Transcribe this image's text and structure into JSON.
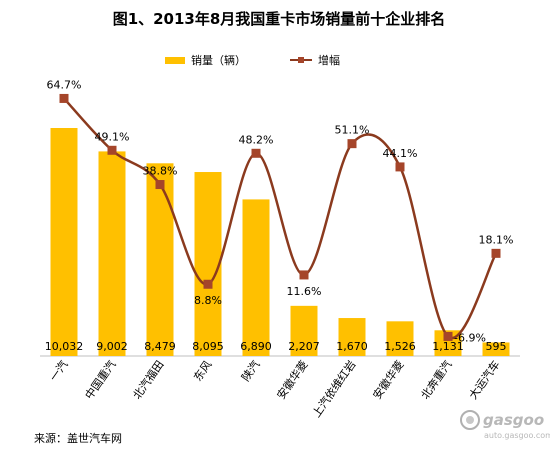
{
  "title": "图1、2013年8月我国重卡市场销量前十企业排名",
  "legend": {
    "bar_label": "销量（辆）",
    "line_label": "增幅"
  },
  "source": "来源：盖世汽车网",
  "watermark": {
    "brand": "gasgoo",
    "site": "auto.gasgoo.com"
  },
  "colors": {
    "bar": "#ffc000",
    "line": "#8b3a1e",
    "marker": "#a5452a",
    "label": "#000000",
    "axis": "#bfbfbf"
  },
  "chart_data": {
    "type": "bar",
    "categories": [
      "一汽",
      "中国重汽",
      "北汽福田",
      "东风",
      "陕汽",
      "安徽华菱",
      "上汽依维红岩",
      "安徽华菱",
      "北奔重汽",
      "大运汽车"
    ],
    "series": [
      {
        "name": "销量（辆）",
        "type": "bar",
        "values": [
          10032,
          9002,
          8479,
          8095,
          6890,
          2207,
          1670,
          1526,
          1131,
          595
        ],
        "labels": [
          "10,032",
          "9,002",
          "8,479",
          "8,095",
          "6,890",
          "2,207",
          "1,670",
          "1,526",
          "1,131",
          "595"
        ]
      },
      {
        "name": "增幅",
        "type": "line",
        "values": [
          64.7,
          49.1,
          38.8,
          8.8,
          48.2,
          11.6,
          51.1,
          44.1,
          -6.9,
          18.1
        ],
        "labels": [
          "64.7%",
          "49.1%",
          "38.8%",
          "8.8%",
          "48.2%",
          "11.6%",
          "51.1%",
          "44.1%",
          "-6.9%",
          "18.1%"
        ]
      }
    ],
    "legend_position": "top",
    "grid": false
  }
}
